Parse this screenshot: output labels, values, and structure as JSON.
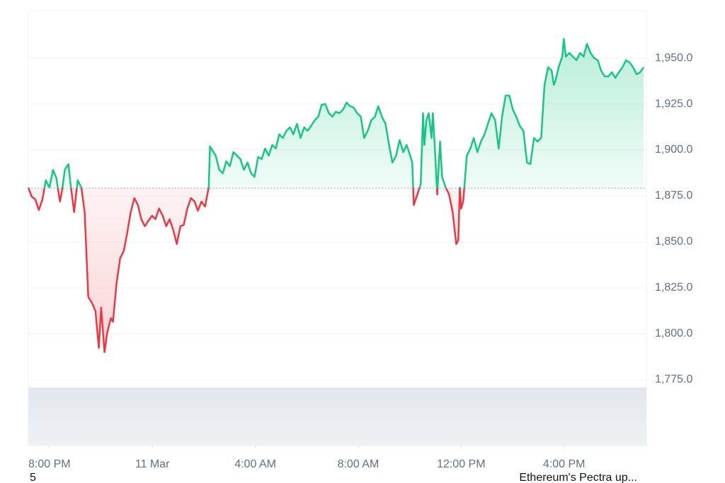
{
  "chart_data": {
    "type": "line",
    "x": [
      -0.82,
      -0.69,
      -0.55,
      -0.41,
      -0.27,
      -0.14,
      0,
      0.14,
      0.27,
      0.41,
      0.49,
      0.6,
      0.74,
      0.82,
      0.96,
      1.1,
      1.24,
      1.37,
      1.51,
      1.65,
      1.79,
      1.92,
      2.01,
      2.14,
      2.25,
      2.39,
      2.47,
      2.61,
      2.75,
      2.89,
      3.02,
      3.16,
      3.3,
      3.44,
      3.57,
      3.71,
      3.85,
      3.99,
      4.12,
      4.26,
      4.4,
      4.54,
      4.67,
      4.81,
      4.95,
      5.09,
      5.22,
      5.36,
      5.5,
      5.64,
      5.77,
      5.91,
      6.05,
      6.19,
      6.24,
      6.46,
      6.6,
      6.74,
      6.87,
      7.01,
      7.15,
      7.29,
      7.42,
      7.56,
      7.7,
      7.84,
      7.97,
      8.11,
      8.25,
      8.38,
      8.52,
      8.66,
      8.8,
      8.93,
      9.07,
      9.21,
      9.35,
      9.48,
      9.62,
      9.76,
      9.9,
      10.03,
      10.17,
      10.31,
      10.45,
      10.58,
      10.72,
      10.86,
      11.0,
      11.13,
      11.27,
      11.41,
      11.55,
      11.68,
      11.82,
      11.96,
      12.1,
      12.23,
      12.37,
      12.51,
      12.65,
      12.78,
      12.92,
      13.06,
      13.2,
      13.33,
      13.47,
      13.61,
      13.75,
      13.88,
      14.02,
      14.1,
      14.16,
      14.3,
      14.43,
      14.52,
      14.57,
      14.65,
      14.74,
      14.85,
      14.9,
      14.98,
      15.07,
      15.18,
      15.26,
      15.4,
      15.53,
      15.67,
      15.81,
      15.89,
      15.95,
      16.0,
      16.08,
      16.22,
      16.36,
      16.49,
      16.63,
      16.77,
      16.91,
      17.04,
      17.18,
      17.32,
      17.46,
      17.59,
      17.73,
      17.87,
      18.01,
      18.14,
      18.28,
      18.42,
      18.56,
      18.69,
      18.83,
      18.97,
      19.11,
      19.24,
      19.38,
      19.52,
      19.6,
      19.66,
      19.79,
      19.93,
      19.99,
      20.07,
      20.21,
      20.34,
      20.48,
      20.62,
      20.76,
      20.89,
      21.03,
      21.17,
      21.31,
      21.44,
      21.58,
      21.72,
      21.86,
      21.99,
      22.13,
      22.27,
      22.41,
      22.54,
      22.68,
      22.82,
      22.96,
      23.09
    ],
    "values": [
      1879.6,
      1874.6,
      1873.1,
      1867.3,
      1873.1,
      1883.5,
      1879.6,
      1889.2,
      1884.6,
      1871.9,
      1877.7,
      1889.2,
      1892.3,
      1881.5,
      1866.2,
      1883.5,
      1879.6,
      1866.2,
      1820.0,
      1816.9,
      1812.3,
      1792.3,
      1814.2,
      1790.0,
      1800.8,
      1808.5,
      1806.5,
      1827.7,
      1841.2,
      1845.0,
      1854.6,
      1866.2,
      1873.8,
      1870.0,
      1862.3,
      1858.5,
      1861.5,
      1864.2,
      1862.3,
      1868.1,
      1864.2,
      1858.5,
      1862.3,
      1856.5,
      1848.8,
      1858.5,
      1859.2,
      1868.1,
      1873.8,
      1871.9,
      1866.9,
      1871.9,
      1869.2,
      1879.6,
      1901.9,
      1896.9,
      1889.2,
      1887.3,
      1893.8,
      1891.2,
      1898.8,
      1896.9,
      1895.0,
      1889.2,
      1893.1,
      1887.3,
      1885.4,
      1896.2,
      1895.0,
      1900.8,
      1896.9,
      1902.7,
      1900.8,
      1908.5,
      1906.5,
      1910.4,
      1912.3,
      1908.5,
      1914.2,
      1906.5,
      1912.3,
      1910.4,
      1913.1,
      1916.2,
      1918.1,
      1924.6,
      1925.0,
      1920.0,
      1918.1,
      1920.8,
      1920.0,
      1921.9,
      1925.8,
      1923.8,
      1923.1,
      1920.0,
      1918.1,
      1906.5,
      1910.4,
      1916.2,
      1918.1,
      1923.8,
      1918.1,
      1914.2,
      1902.7,
      1893.1,
      1896.9,
      1905.4,
      1898.8,
      1902.7,
      1896.9,
      1893.1,
      1870.0,
      1875.8,
      1881.5,
      1920.0,
      1902.7,
      1916.2,
      1920.0,
      1906.5,
      1920.0,
      1900.8,
      1875.8,
      1904.6,
      1885.4,
      1879.6,
      1875.8,
      1866.2,
      1848.8,
      1850.8,
      1879.6,
      1868.1,
      1871.9,
      1896.9,
      1900.8,
      1906.5,
      1898.8,
      1904.6,
      1908.5,
      1914.2,
      1920.0,
      1916.2,
      1900.8,
      1918.1,
      1929.6,
      1929.6,
      1921.9,
      1918.1,
      1913.1,
      1910.4,
      1893.1,
      1892.3,
      1906.5,
      1904.6,
      1906.5,
      1935.4,
      1945.0,
      1943.1,
      1935.4,
      1937.3,
      1945.0,
      1950.8,
      1960.4,
      1950.8,
      1952.7,
      1950.8,
      1948.8,
      1952.7,
      1950.8,
      1957.7,
      1952.7,
      1950.0,
      1948.8,
      1943.1,
      1940.0,
      1940.0,
      1942.3,
      1939.2,
      1942.3,
      1945.0,
      1948.8,
      1947.7,
      1945.0,
      1941.2,
      1942.3,
      1945.0
    ],
    "baseline": 1879.2,
    "up_color": "#16c784",
    "down_color": "#ea3943",
    "xlim": [
      -0.82,
      23.2
    ],
    "xticks": [
      {
        "value": 0,
        "label": "8:00 PM"
      },
      {
        "value": 4,
        "label": "11 Mar"
      },
      {
        "value": 8,
        "label": "4:00 AM"
      },
      {
        "value": 12,
        "label": "8:00 AM"
      },
      {
        "value": 16,
        "label": "12:00 PM"
      },
      {
        "value": 20,
        "label": "4:00 PM"
      }
    ],
    "ylim": [
      1739.2,
      1975.8
    ],
    "yticks": [
      {
        "value": 1775,
        "label": "1,775.0"
      },
      {
        "value": 1800,
        "label": "1,800.0"
      },
      {
        "value": 1825,
        "label": "1,825.0"
      },
      {
        "value": 1850,
        "label": "1,850.0"
      },
      {
        "value": 1875,
        "label": "1,875.0"
      },
      {
        "value": 1900,
        "label": "1,900.0"
      },
      {
        "value": 1925,
        "label": "1,925.0"
      },
      {
        "value": 1950,
        "label": "1,950.0"
      }
    ],
    "grid": true
  },
  "footer": {
    "left": "5",
    "right": "Ethereum's Pectra up..."
  }
}
